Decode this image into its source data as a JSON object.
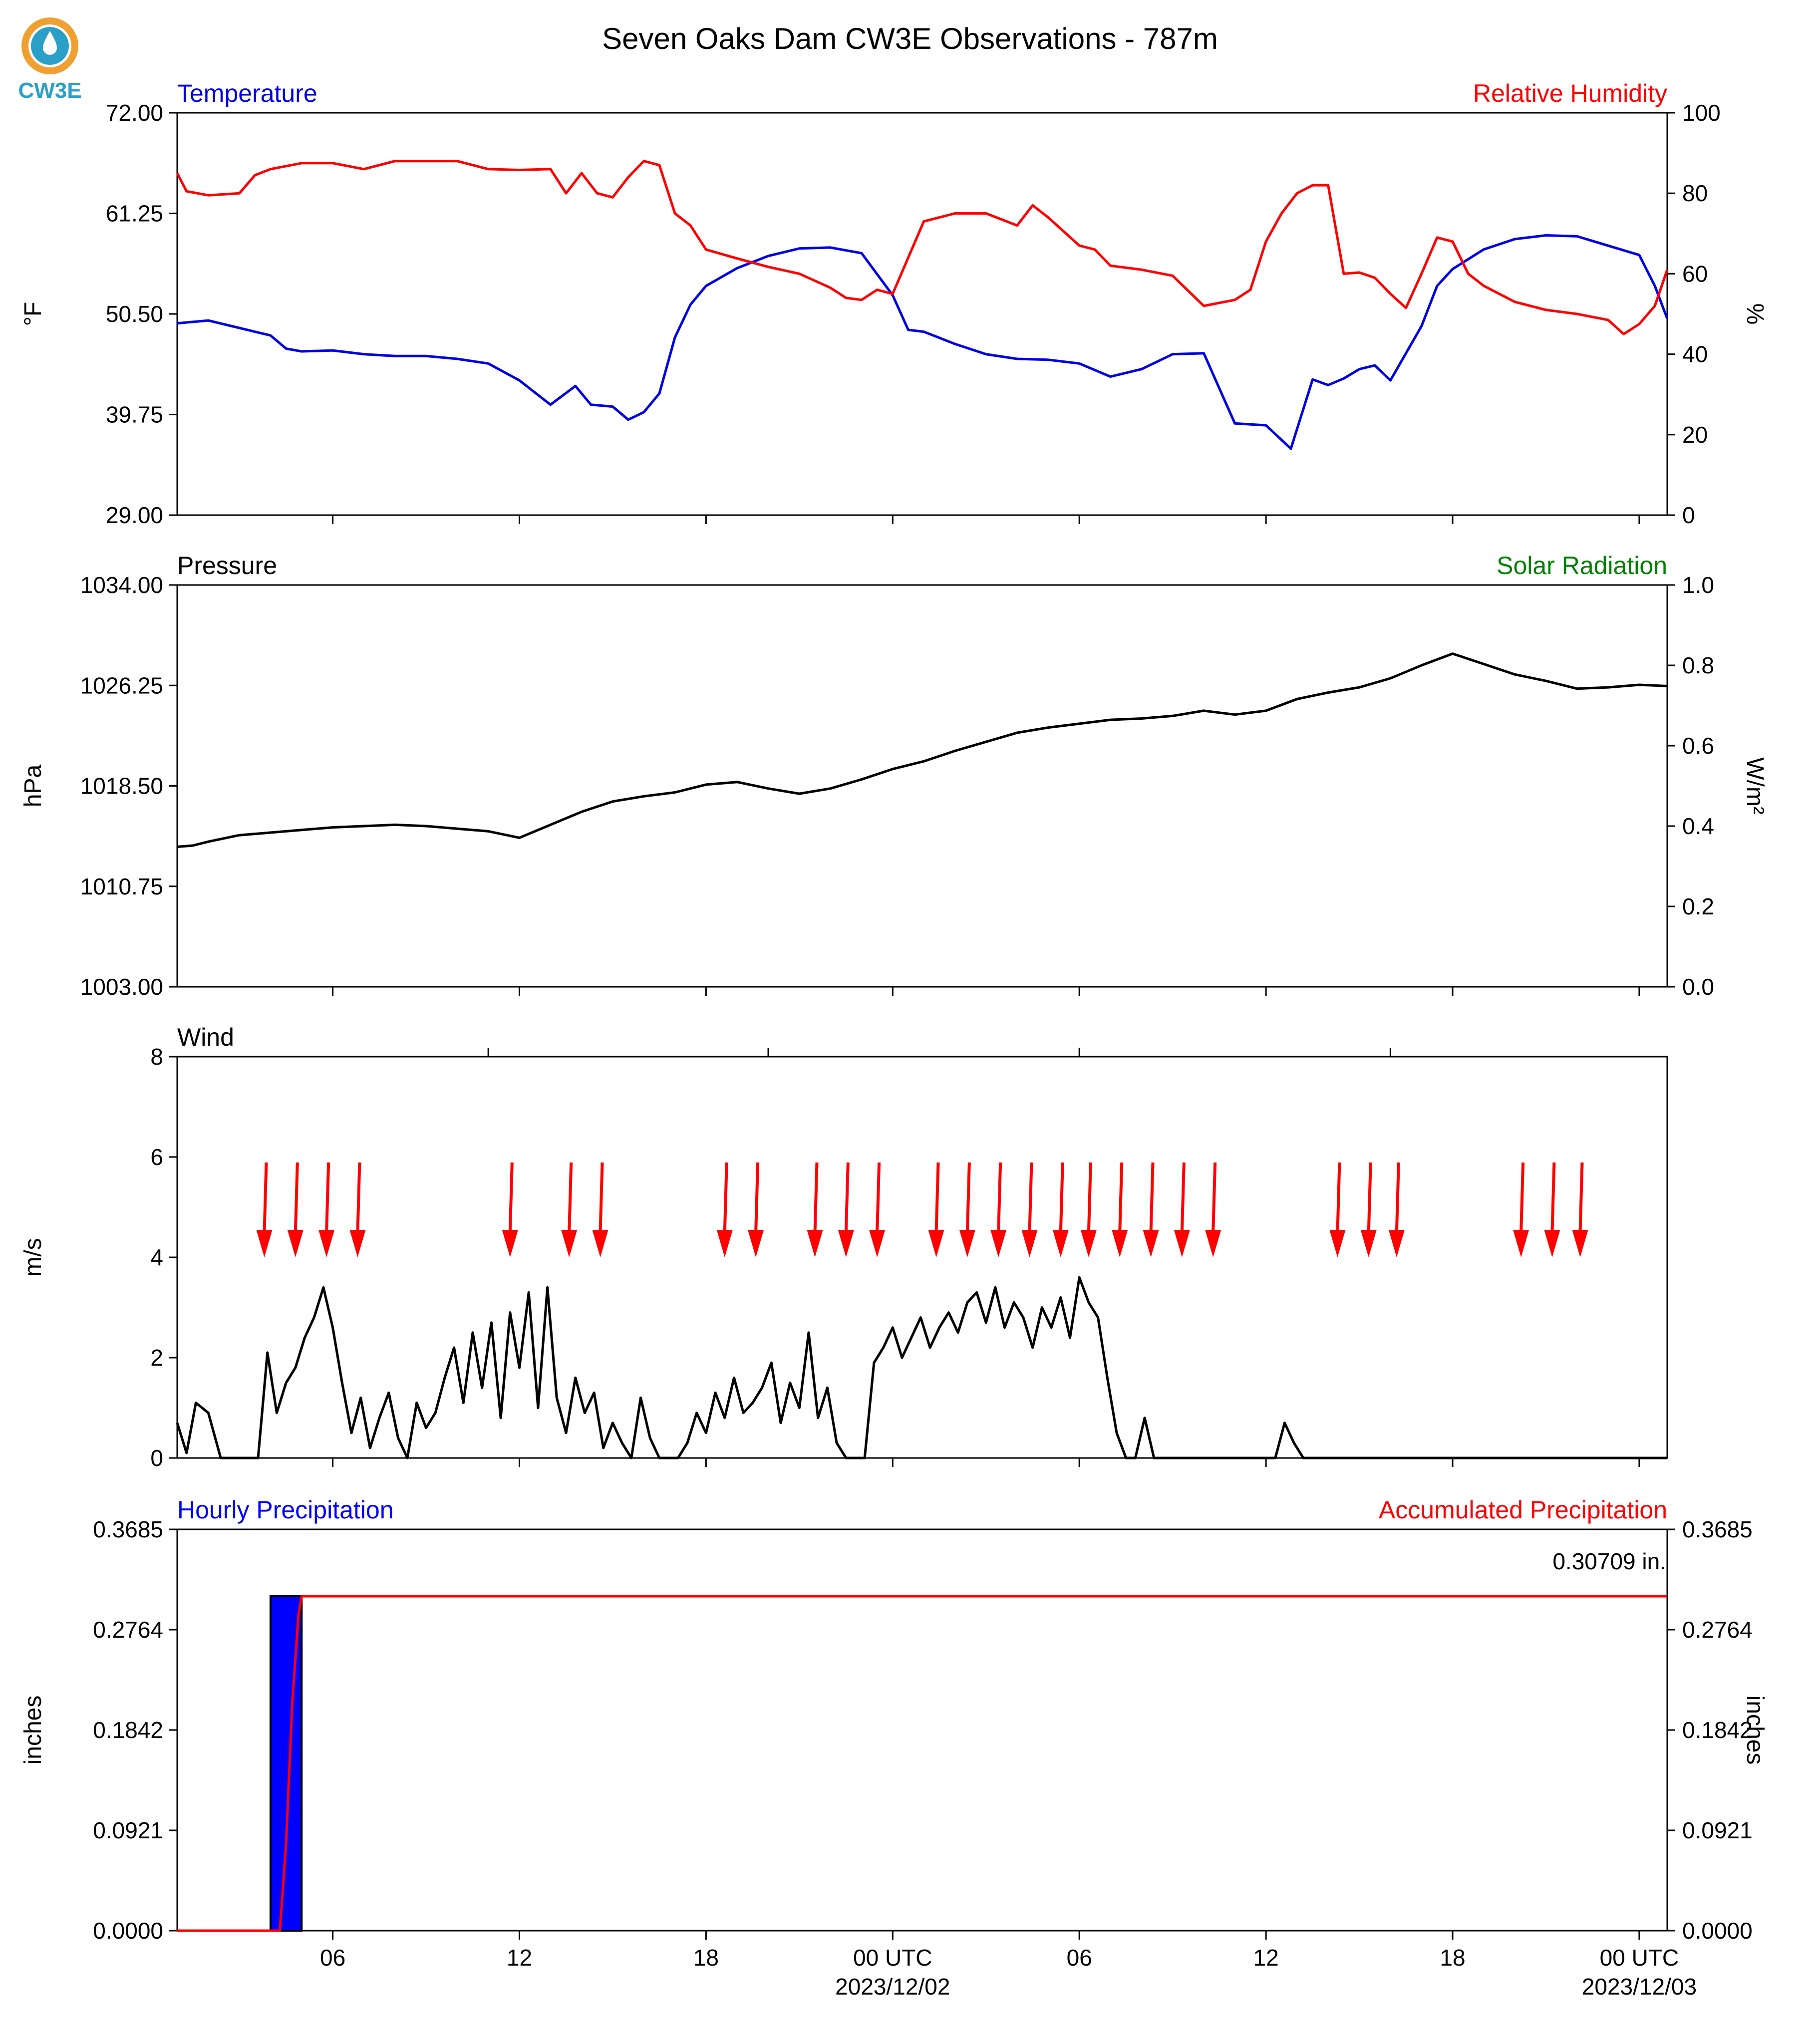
{
  "title": "Seven Oaks Dam CW3E Observations - 787m",
  "logo": {
    "text": "CW3E",
    "color": "#2aa0c8",
    "ring_color": "#f0a030"
  },
  "colors": {
    "temperature": "#0000e6",
    "humidity": "#ff0000",
    "pressure": "#000000",
    "solar": "#008000",
    "wind": "#000000",
    "arrow": "#ff0000",
    "hourly_bar": "#0000ff",
    "accum": "#ff0000"
  },
  "x_ticks": {
    "labels": [
      "06",
      "12",
      "18",
      "00 UTC",
      "06",
      "12",
      "18",
      "00 UTC"
    ],
    "hours": [
      6,
      12,
      18,
      24,
      30,
      36,
      42,
      48
    ],
    "dates": [
      "2023/12/02",
      "2023/12/03"
    ]
  },
  "chart_data": [
    {
      "type": "line",
      "panel": "temperature_humidity",
      "left_label": "Temperature",
      "right_label": "Relative Humidity",
      "ylabel_left": "°F",
      "ylabel_right": "%",
      "ylim_left": [
        29.0,
        72.0
      ],
      "ylim_right": [
        0,
        100
      ],
      "yticks_left": [
        "72.00",
        "61.25",
        "50.50",
        "39.75",
        "29.00"
      ],
      "yticks_right": [
        "100",
        "80",
        "60",
        "40",
        "20",
        "0"
      ],
      "xlim_hours": [
        1,
        48.9
      ],
      "series": [
        {
          "name": "Temperature",
          "axis": "left",
          "color": "#0000e6",
          "x": [
            1,
            2,
            3,
            4,
            4.5,
            5,
            6,
            7,
            8,
            9,
            10,
            11,
            12,
            13,
            13.8,
            14.3,
            15,
            15.5,
            16,
            16.5,
            17,
            17.5,
            18,
            19,
            20,
            21,
            22,
            23,
            24,
            24.5,
            25,
            26,
            27,
            28,
            29,
            30,
            31,
            32,
            33,
            34,
            35,
            36,
            36.8,
            37.5,
            38,
            38.5,
            39,
            39.5,
            40,
            41,
            41.5,
            42,
            43,
            44,
            45,
            46,
            47,
            48,
            48.5,
            48.9
          ],
          "y": [
            49.5,
            49.8,
            49,
            48.2,
            46.8,
            46.5,
            46.6,
            46.2,
            46.0,
            46.0,
            45.7,
            45.2,
            43.4,
            40.8,
            42.8,
            40.8,
            40.6,
            39.2,
            40,
            42,
            48,
            51.5,
            53.5,
            55.4,
            56.7,
            57.5,
            57.6,
            57,
            52.5,
            48.8,
            48.6,
            47.3,
            46.2,
            45.7,
            45.6,
            45.2,
            43.8,
            44.6,
            46.2,
            46.3,
            38.8,
            38.6,
            36.1,
            43.5,
            42.9,
            43.6,
            44.6,
            45,
            43.4,
            49.2,
            53.5,
            55.3,
            57.4,
            58.5,
            58.9,
            58.8,
            57.8,
            56.8,
            53.5,
            50.0
          ]
        },
        {
          "name": "Relative Humidity",
          "axis": "right",
          "color": "#ff0000",
          "x": [
            1,
            1.3,
            2,
            3,
            3.5,
            4,
            5,
            6,
            7,
            8,
            9,
            10,
            11,
            12,
            13,
            13.5,
            14,
            14.5,
            15,
            15.5,
            16,
            16.5,
            17,
            17.5,
            18,
            19,
            20,
            21,
            22,
            22.5,
            23,
            23.5,
            24,
            25,
            26,
            27,
            28,
            28.5,
            29,
            30,
            30.5,
            31,
            32,
            33,
            34,
            35,
            35.5,
            36,
            36.5,
            37,
            37.5,
            38,
            38.5,
            39,
            39.5,
            40,
            40.5,
            41,
            41.5,
            42,
            42.5,
            43,
            44,
            45,
            46,
            47,
            47.5,
            48,
            48.5,
            48.9
          ],
          "y": [
            85,
            80.5,
            79.5,
            80,
            84.5,
            86,
            87.5,
            87.5,
            86,
            88,
            88,
            88,
            86,
            85.8,
            86,
            80,
            85,
            80,
            79,
            84,
            88,
            87,
            75,
            72,
            66,
            63.8,
            61.7,
            60,
            56.5,
            54,
            53.5,
            56,
            55,
            73,
            75,
            75,
            72,
            77,
            74,
            67,
            66,
            62,
            61,
            59.5,
            52,
            53.5,
            56,
            68,
            75,
            80,
            82,
            82,
            60,
            60.3,
            59,
            55,
            51.5,
            60,
            69,
            68,
            60,
            57,
            53,
            51,
            50,
            48.5,
            45,
            47.5,
            52,
            61
          ]
        }
      ]
    },
    {
      "type": "line",
      "panel": "pressure_solar",
      "left_label": "Pressure",
      "right_label": "Solar Radiation",
      "ylabel_left": "hPa",
      "ylabel_right": "W/m²",
      "ylim_left": [
        1003.0,
        1034.0
      ],
      "ylim_right": [
        0.0,
        1.0
      ],
      "yticks_left": [
        "1034.00",
        "1026.25",
        "1018.50",
        "1010.75",
        "1003.00"
      ],
      "yticks_right": [
        "1.0",
        "0.8",
        "0.6",
        "0.4",
        "0.2",
        "0.0"
      ],
      "xlim_hours": [
        1,
        48.9
      ],
      "series": [
        {
          "name": "Pressure",
          "axis": "left",
          "color": "#000000",
          "x": [
            1,
            1.5,
            2,
            3,
            4,
            5,
            6,
            7,
            8,
            9,
            10,
            11,
            12,
            13,
            14,
            15,
            16,
            17,
            18,
            19,
            20,
            21,
            22,
            23,
            24,
            25,
            26,
            27,
            28,
            29,
            30,
            31,
            32,
            33,
            34,
            35,
            36,
            37,
            38,
            39,
            40,
            41,
            42,
            43,
            44,
            45,
            46,
            47,
            48,
            48.9
          ],
          "y": [
            1013.8,
            1013.9,
            1014.2,
            1014.7,
            1014.9,
            1015.1,
            1015.3,
            1015.4,
            1015.5,
            1015.4,
            1015.2,
            1015,
            1014.5,
            1015.5,
            1016.5,
            1017.3,
            1017.7,
            1018,
            1018.6,
            1018.8,
            1018.3,
            1017.9,
            1018.3,
            1019,
            1019.8,
            1020.4,
            1021.2,
            1021.9,
            1022.6,
            1023,
            1023.3,
            1023.6,
            1023.7,
            1023.9,
            1024.3,
            1024,
            1024.3,
            1025.2,
            1025.7,
            1026.1,
            1026.8,
            1027.8,
            1028.7,
            1027.9,
            1027.1,
            1026.6,
            1026,
            1026.1,
            1026.3,
            1026.2
          ]
        },
        {
          "name": "Solar Radiation",
          "axis": "right",
          "color": "#008000",
          "x": [],
          "y": []
        }
      ]
    },
    {
      "type": "line",
      "panel": "wind",
      "left_label": "Wind",
      "ylabel_left": "m/s",
      "ylim_left": [
        0,
        8
      ],
      "yticks_left": [
        "8",
        "6",
        "4",
        "2",
        "0"
      ],
      "xlim_hours": [
        1,
        48.9
      ],
      "series": [
        {
          "name": "Wind",
          "axis": "left",
          "color": "#000000",
          "x": [
            1,
            1.3,
            1.6,
            2,
            2.4,
            2.8,
            3.2,
            3.6,
            3.9,
            4.2,
            4.5,
            4.8,
            5.1,
            5.4,
            5.7,
            6,
            6.3,
            6.6,
            6.9,
            7.2,
            7.5,
            7.8,
            8.1,
            8.4,
            8.7,
            9,
            9.3,
            9.6,
            9.9,
            10.2,
            10.5,
            10.8,
            11.1,
            11.4,
            11.7,
            12,
            12.3,
            12.6,
            12.9,
            13.2,
            13.5,
            13.8,
            14.1,
            14.4,
            14.7,
            15,
            15.3,
            15.6,
            15.9,
            16.2,
            16.5,
            16.8,
            17.1,
            17.4,
            17.7,
            18,
            18.3,
            18.6,
            18.9,
            19.2,
            19.5,
            19.8,
            20.1,
            20.4,
            20.7,
            21,
            21.3,
            21.6,
            21.9,
            22.2,
            22.5,
            22.8,
            23.1,
            23.4,
            23.7,
            24,
            24.3,
            24.6,
            24.9,
            25.2,
            25.5,
            25.8,
            26.1,
            26.4,
            26.7,
            27,
            27.3,
            27.6,
            27.9,
            28.2,
            28.5,
            28.8,
            29.1,
            29.4,
            29.7,
            30,
            30.3,
            30.6,
            30.9,
            31.2,
            31.5,
            31.8,
            32.1,
            32.4,
            32.7,
            33,
            33.3,
            33.6,
            33.9,
            34.2,
            34.5,
            34.8,
            35.1,
            35.4,
            35.7,
            36,
            36.3,
            36.6,
            36.9,
            37.2,
            37.5,
            37.8,
            38.1,
            38.4,
            38.7,
            39,
            39.3,
            39.6,
            39.9,
            40.2,
            40.5,
            40.8,
            41.1,
            41.4,
            41.7,
            42,
            42.3,
            42.6,
            42.9,
            43.2,
            43.5,
            43.8,
            44.1,
            44.4,
            44.7,
            45,
            45.3,
            45.6,
            45.9,
            46.2,
            46.5,
            46.8,
            47.1,
            47.4,
            47.7,
            48,
            48.3,
            48.6,
            48.9
          ],
          "y": [
            0.7,
            0.1,
            1.1,
            0.9,
            0,
            0,
            0,
            0,
            2.1,
            0.9,
            1.5,
            1.8,
            2.4,
            2.8,
            3.4,
            2.6,
            1.5,
            0.5,
            1.2,
            0.2,
            0.8,
            1.3,
            0.4,
            0,
            1.1,
            0.6,
            0.9,
            1.6,
            2.2,
            1.1,
            2.5,
            1.4,
            2.7,
            0.8,
            2.9,
            1.8,
            3.3,
            1.0,
            3.4,
            1.2,
            0.5,
            1.6,
            0.9,
            1.3,
            0.2,
            0.7,
            0.3,
            0,
            1.2,
            0.4,
            0,
            0,
            0,
            0.3,
            0.9,
            0.5,
            1.3,
            0.8,
            1.6,
            0.9,
            1.1,
            1.4,
            1.9,
            0.7,
            1.5,
            1.0,
            2.5,
            0.8,
            1.4,
            0.3,
            0,
            0,
            0,
            1.9,
            2.2,
            2.6,
            2.0,
            2.4,
            2.8,
            2.2,
            2.6,
            2.9,
            2.5,
            3.1,
            3.3,
            2.7,
            3.4,
            2.6,
            3.1,
            2.8,
            2.2,
            3.0,
            2.6,
            3.2,
            2.4,
            3.6,
            3.1,
            2.8,
            1.6,
            0.5,
            0,
            0,
            0.8,
            0,
            0,
            0,
            0,
            0,
            0,
            0,
            0,
            0,
            0,
            0,
            0,
            0,
            0,
            0.7,
            0.3,
            0,
            0,
            0,
            0,
            0,
            0,
            0,
            0,
            0,
            0,
            0,
            0,
            0,
            0,
            0,
            0,
            0,
            0,
            0,
            0,
            0,
            0,
            0,
            0,
            0,
            0,
            0,
            0,
            0,
            0,
            0,
            0,
            0,
            0,
            0,
            0,
            0,
            0,
            0,
            0
          ]
        },
        {
          "name": "Wind direction",
          "kind": "arrows",
          "color": "#ff0000",
          "x": [
            3.8,
            4.8,
            5.8,
            6.8,
            11.7,
            13.6,
            14.6,
            18.6,
            19.6,
            21.5,
            22.5,
            23.5,
            25.4,
            26.4,
            27.4,
            28.4,
            29.4,
            30.3,
            31.3,
            32.3,
            33.3,
            34.3,
            38.3,
            39.3,
            40.2,
            44.2,
            45.2,
            46.1
          ],
          "y": [
            4,
            4,
            4,
            4,
            4,
            4,
            4,
            4,
            4,
            4,
            4,
            4,
            4,
            4,
            4,
            4,
            4,
            4,
            4,
            4,
            4,
            4,
            4,
            4,
            4,
            4,
            4,
            4
          ]
        }
      ]
    },
    {
      "type": "bar",
      "panel": "precipitation",
      "left_label": "Hourly Precipitation",
      "right_label": "Accumulated Precipitation",
      "ylabel_left": "inches",
      "ylabel_right": "inches",
      "ylim_left": [
        0.0,
        0.3685
      ],
      "ylim_right": [
        0.0,
        0.3685
      ],
      "yticks_left": [
        "0.3685",
        "0.2764",
        "0.1842",
        "0.0921",
        "0.0000"
      ],
      "yticks_right": [
        "0.3685",
        "0.2764",
        "0.1842",
        "0.0921",
        "0.0000"
      ],
      "annotation": "0.30709 in.",
      "xlim_hours": [
        1,
        48.9
      ],
      "series": [
        {
          "name": "Hourly Precipitation",
          "axis": "left",
          "color": "#0000ff",
          "x": [
            4
          ],
          "y": [
            0.30709
          ]
        },
        {
          "name": "Accumulated Precipitation",
          "axis": "right",
          "color": "#ff0000",
          "x": [
            1,
            4.3,
            4.5,
            4.7,
            4.9,
            5.0,
            48.9
          ],
          "y": [
            0,
            0,
            0.08,
            0.21,
            0.29,
            0.30709,
            0.30709
          ]
        }
      ]
    }
  ]
}
